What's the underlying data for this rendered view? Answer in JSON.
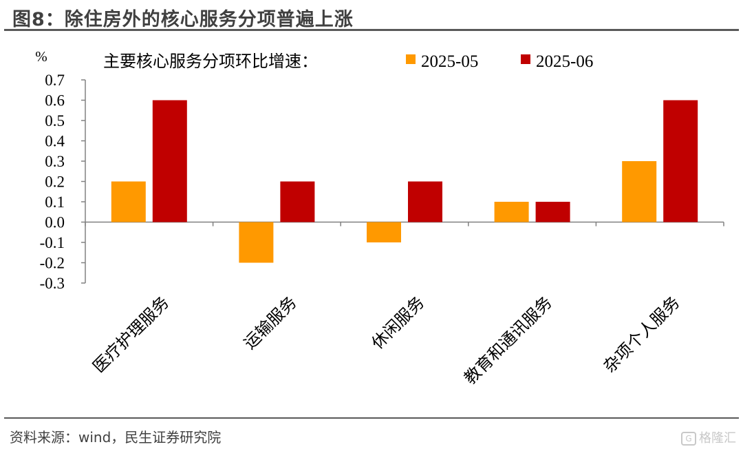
{
  "figure": {
    "title": "图8：除住房外的核心服务分项普遍上涨",
    "source": "资料来源：wind，民生证券研究院",
    "watermark": "格隆汇"
  },
  "chart_data": {
    "type": "bar",
    "title": "主要核心服务分项环比增速：",
    "unit_label": "%",
    "categories": [
      "医疗护理服务",
      "运输服务",
      "休闲服务",
      "教育和通讯服务",
      "杂项个人服务"
    ],
    "series": [
      {
        "name": "2025-05",
        "values": [
          0.2,
          -0.2,
          -0.1,
          0.1,
          0.3
        ],
        "color": "#FF9900"
      },
      {
        "name": "2025-06",
        "values": [
          0.6,
          0.2,
          0.2,
          0.1,
          0.6
        ],
        "color": "#C00000"
      }
    ],
    "ylim": [
      -0.3,
      0.7
    ],
    "yticks": [
      "0.7",
      "0.6",
      "0.5",
      "0.4",
      "0.3",
      "0.2",
      "0.1",
      "0.0",
      "-0.1",
      "-0.2",
      "-0.3"
    ],
    "grid": false,
    "legend_position": "top-right"
  }
}
